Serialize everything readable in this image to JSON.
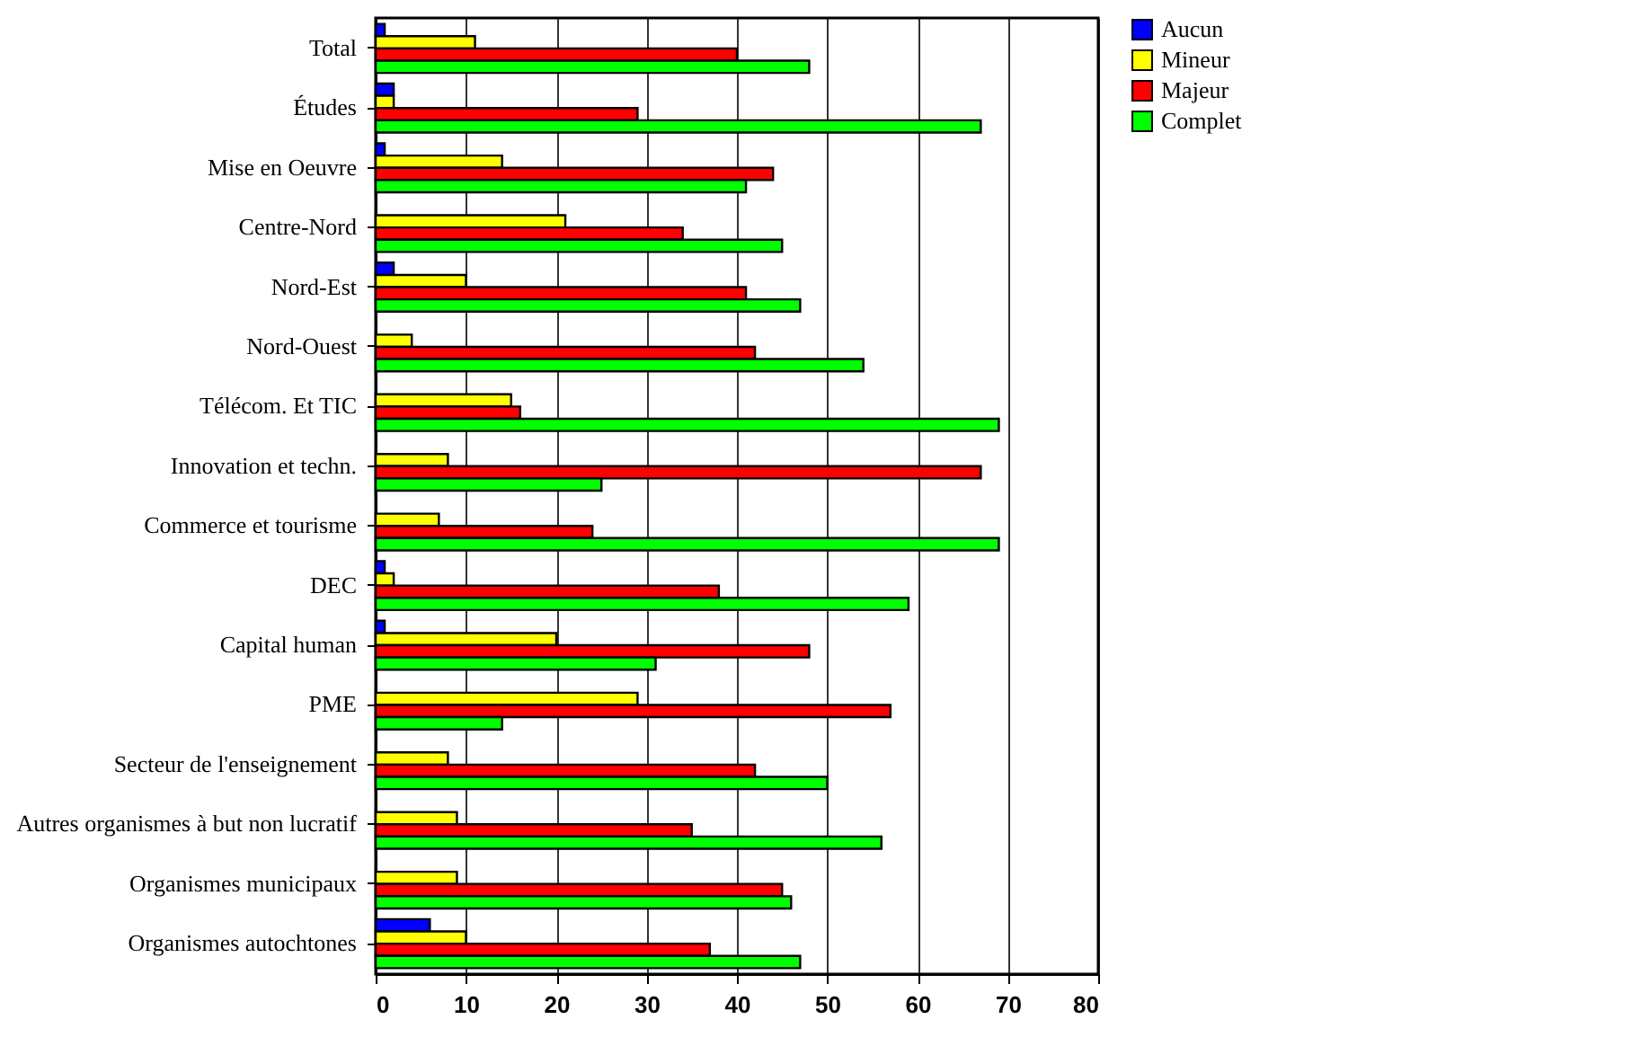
{
  "chart_data": {
    "type": "bar",
    "orientation": "horizontal",
    "categories": [
      "Total",
      "Études",
      "Mise en Oeuvre",
      "Centre-Nord",
      "Nord-Est",
      "Nord-Ouest",
      "Télécom. Et TIC",
      "Innovation et techn.",
      "Commerce et tourisme",
      "DEC",
      "Capital human",
      "PME",
      "Secteur de l'enseignement",
      "Autres organismes à but non lucratif",
      "Organismes municipaux",
      "Organismes autochtones"
    ],
    "series": [
      {
        "name": "Aucun",
        "color": "#0000ff",
        "values": [
          1,
          2,
          1,
          0,
          2,
          0,
          0,
          0,
          0,
          1,
          1,
          0,
          0,
          0,
          0,
          6
        ]
      },
      {
        "name": "Mineur",
        "color": "#ffff00",
        "values": [
          11,
          2,
          14,
          21,
          10,
          4,
          15,
          8,
          7,
          2,
          20,
          29,
          8,
          9,
          9,
          10
        ]
      },
      {
        "name": "Majeur",
        "color": "#ff0000",
        "values": [
          40,
          29,
          44,
          34,
          41,
          42,
          16,
          67,
          24,
          38,
          48,
          57,
          42,
          35,
          45,
          37
        ]
      },
      {
        "name": "Complet",
        "color": "#00ff00",
        "values": [
          48,
          67,
          41,
          45,
          47,
          54,
          69,
          25,
          69,
          59,
          31,
          14,
          50,
          56,
          46,
          47
        ]
      }
    ],
    "xlim": [
      0,
      80
    ],
    "xticks": [
      0,
      10,
      20,
      30,
      40,
      50,
      60,
      70,
      80
    ],
    "grid": "x",
    "legend": "right"
  }
}
